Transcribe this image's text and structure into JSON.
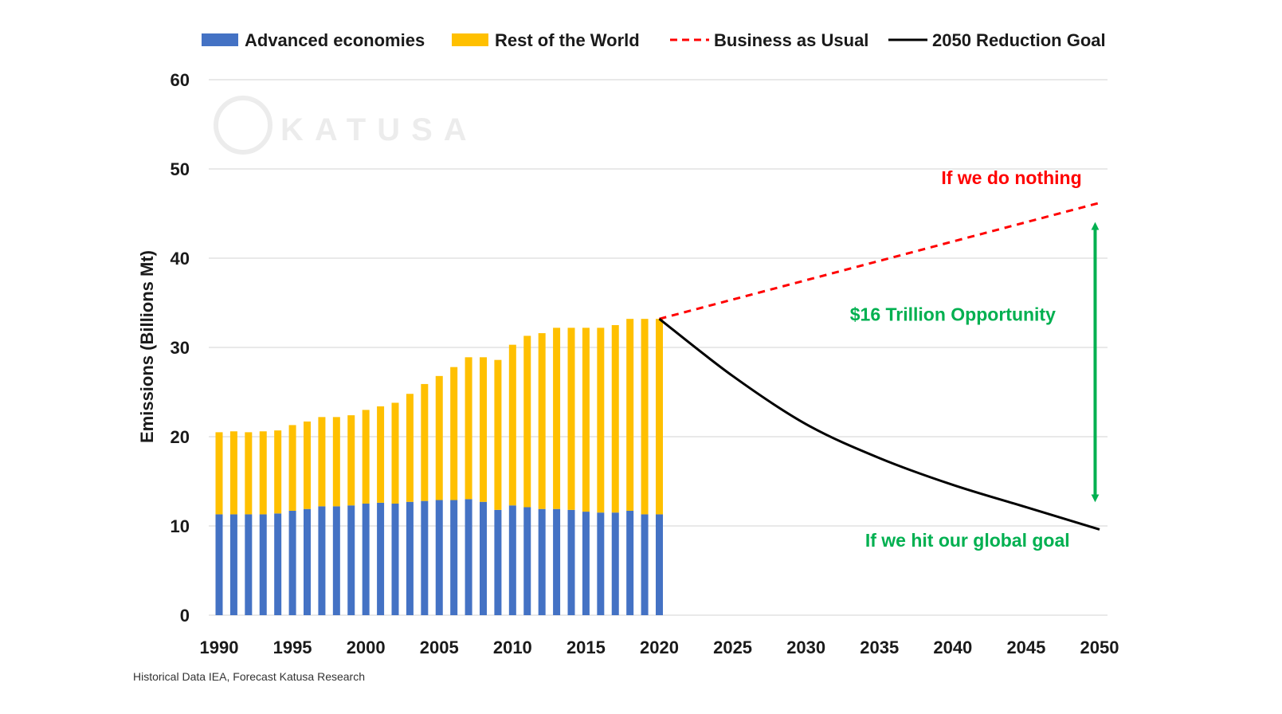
{
  "chart_data": {
    "type": "bar",
    "ylabel": "Emissions (Billions Mt)",
    "ylim": [
      0,
      60
    ],
    "yticks": [
      0,
      10,
      20,
      30,
      40,
      50,
      60
    ],
    "xlim": [
      1990,
      2050
    ],
    "xticks": [
      1990,
      1995,
      2000,
      2005,
      2010,
      2015,
      2020,
      2025,
      2030,
      2035,
      2040,
      2045,
      2050
    ],
    "xtick_labels": [
      "1990",
      "1995",
      "2000",
      "2005",
      "2010",
      "2015",
      "2020",
      "2025",
      "2030",
      "2035",
      "2040",
      "2045",
      "2050"
    ],
    "grid": true,
    "legend_position": "top",
    "categories": [
      1990,
      1991,
      1992,
      1993,
      1994,
      1995,
      1996,
      1997,
      1998,
      1999,
      2000,
      2001,
      2002,
      2003,
      2004,
      2005,
      2006,
      2007,
      2008,
      2009,
      2010,
      2011,
      2012,
      2013,
      2014,
      2015,
      2016,
      2017,
      2018,
      2019,
      2020
    ],
    "series": [
      {
        "name": "Advanced economies",
        "kind": "bar",
        "color": "#4472C4",
        "values": [
          11.3,
          11.3,
          11.3,
          11.3,
          11.4,
          11.7,
          11.9,
          12.2,
          12.2,
          12.3,
          12.5,
          12.6,
          12.5,
          12.7,
          12.8,
          12.9,
          12.9,
          13.0,
          12.7,
          11.8,
          12.3,
          12.1,
          11.9,
          11.9,
          11.8,
          11.6,
          11.5,
          11.5,
          11.7,
          11.3,
          11.3
        ]
      },
      {
        "name": "Rest of the World",
        "kind": "bar",
        "color": "#FFC000",
        "values": [
          9.2,
          9.3,
          9.2,
          9.3,
          9.3,
          9.6,
          9.8,
          10.0,
          10.0,
          10.1,
          10.5,
          10.8,
          11.3,
          12.1,
          13.1,
          13.9,
          14.9,
          15.9,
          16.2,
          16.8,
          18.0,
          19.2,
          19.7,
          20.3,
          20.4,
          20.6,
          20.7,
          21.0,
          21.5,
          21.9,
          21.9
        ]
      },
      {
        "name": "Business as Usual",
        "kind": "line",
        "style": "dashed",
        "color": "#FF0000",
        "x": [
          2020,
          2050
        ],
        "y": [
          33.2,
          46.2
        ]
      },
      {
        "name": "2050 Reduction Goal",
        "kind": "line",
        "style": "solid",
        "color": "#000000",
        "x": [
          2020,
          2025,
          2030,
          2035,
          2040,
          2045,
          2050
        ],
        "y": [
          33.2,
          26.8,
          21.4,
          17.6,
          14.6,
          12.1,
          9.6
        ]
      }
    ],
    "annotations": [
      {
        "text": "If we do nothing",
        "color": "#FF0000",
        "x": 2044,
        "y": 48.3
      },
      {
        "text": "$16 Trillion  Opportunity",
        "color": "#00B050",
        "x": 2040,
        "y": 33.0
      },
      {
        "text": "If we hit our global goal",
        "color": "#00B050",
        "x": 2041,
        "y": 7.7
      }
    ],
    "arrow": {
      "color": "#00B050",
      "x": 2049.7,
      "y_from": 13.1,
      "y_to": 43.6
    },
    "source_note": "Historical Data IEA, Forecast Katusa Research",
    "watermark": "KATUSA"
  }
}
